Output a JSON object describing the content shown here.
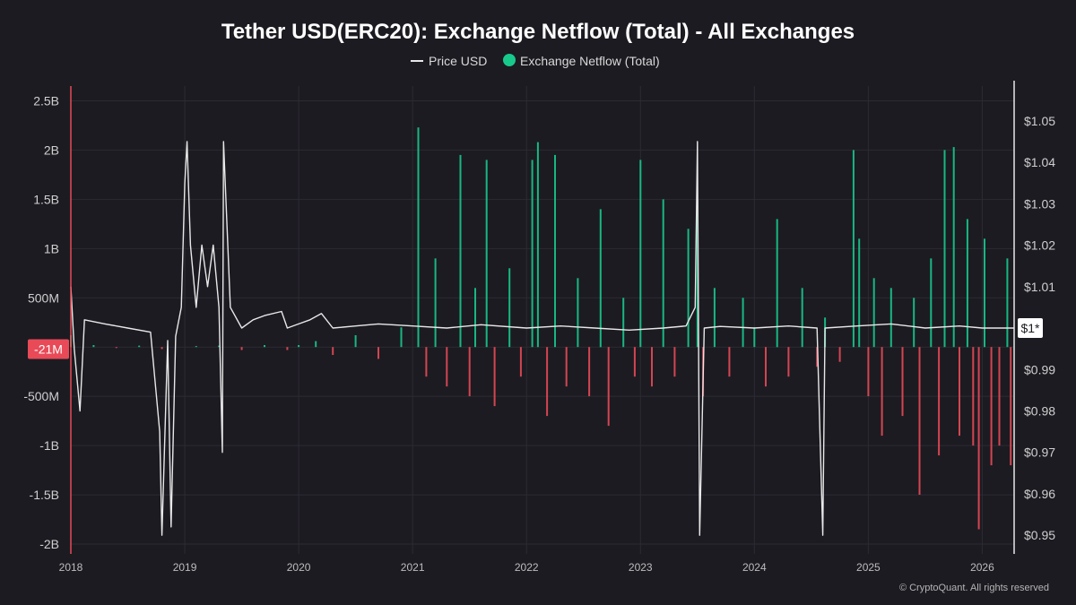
{
  "chart_data": {
    "type": "bar",
    "title": "Tether USD(ERC20): Exchange Netflow (Total) - All Exchanges",
    "legend": [
      {
        "name": "Price USD",
        "marker": "line",
        "color": "#e8e8e8"
      },
      {
        "name": "Exchange Netflow (Total)",
        "marker": "dot",
        "color": "#18c98c"
      }
    ],
    "x_range": [
      2018.0,
      2026.28
    ],
    "x_ticks": [
      {
        "value": 2018,
        "label": "2018"
      },
      {
        "value": 2019,
        "label": "2019"
      },
      {
        "value": 2020,
        "label": "2020"
      },
      {
        "value": 2021,
        "label": "2021"
      },
      {
        "value": 2022,
        "label": "2022"
      },
      {
        "value": 2023,
        "label": "2023"
      },
      {
        "value": 2024,
        "label": "2024"
      },
      {
        "value": 2025,
        "label": "2025"
      },
      {
        "value": 2026,
        "label": "2026"
      }
    ],
    "y_left": {
      "name": "Exchange Netflow",
      "range": [
        -2100000000.0,
        2650000000.0
      ],
      "ticks": [
        {
          "value": 2500000000.0,
          "label": "2.5B"
        },
        {
          "value": 2000000000.0,
          "label": "2B"
        },
        {
          "value": 1500000000.0,
          "label": "1.5B"
        },
        {
          "value": 1000000000.0,
          "label": "1B"
        },
        {
          "value": 500000000.0,
          "label": "500M"
        },
        {
          "value": -500000000.0,
          "label": "-500M"
        },
        {
          "value": -1000000000.0,
          "label": "-1B"
        },
        {
          "value": -1500000000.0,
          "label": "-1.5B"
        },
        {
          "value": -2000000000.0,
          "label": "-2B"
        }
      ]
    },
    "y_right": {
      "name": "Price USD",
      "range": [
        0.9455,
        1.0584
      ],
      "ticks": [
        {
          "value": 1.05,
          "label": "$1.05"
        },
        {
          "value": 1.04,
          "label": "$1.04"
        },
        {
          "value": 1.03,
          "label": "$1.03"
        },
        {
          "value": 1.02,
          "label": "$1.02"
        },
        {
          "value": 1.01,
          "label": "$1.01"
        },
        {
          "value": 0.99,
          "label": "$0.99"
        },
        {
          "value": 0.98,
          "label": "$0.98"
        },
        {
          "value": 0.97,
          "label": "$0.97"
        },
        {
          "value": 0.96,
          "label": "$0.96"
        },
        {
          "value": 0.95,
          "label": "$0.95"
        }
      ]
    },
    "current_netflow": {
      "value": -21000000.0,
      "label": "-21M",
      "color": "#e84a57"
    },
    "current_price": {
      "value": 1.0,
      "label": "$1*"
    },
    "positive_color": "#18c98c",
    "negative_color": "#e84a57",
    "netflow_series": {
      "name": "Exchange Netflow (Total)",
      "points": [
        [
          2018.0,
          120000000.0
        ],
        [
          2018.2,
          20000000.0
        ],
        [
          2018.4,
          -10000000.0
        ],
        [
          2018.6,
          15000000.0
        ],
        [
          2018.8,
          -20000000.0
        ],
        [
          2019.1,
          10000000.0
        ],
        [
          2019.3,
          15000000.0
        ],
        [
          2019.5,
          -30000000.0
        ],
        [
          2019.7,
          20000000.0
        ],
        [
          2019.9,
          -30000000.0
        ],
        [
          2020.0,
          20000000.0
        ],
        [
          2020.15,
          60000000.0
        ],
        [
          2020.3,
          -80000000.0
        ],
        [
          2020.5,
          120000000.0
        ],
        [
          2020.7,
          -120000000.0
        ],
        [
          2020.9,
          200000000.0
        ],
        [
          2021.05,
          2230000000.0
        ],
        [
          2021.12,
          -300000000.0
        ],
        [
          2021.2,
          900000000.0
        ],
        [
          2021.3,
          -400000000.0
        ],
        [
          2021.42,
          1950000000.0
        ],
        [
          2021.5,
          -500000000.0
        ],
        [
          2021.55,
          600000000.0
        ],
        [
          2021.65,
          1900000000.0
        ],
        [
          2021.72,
          -600000000.0
        ],
        [
          2021.85,
          800000000.0
        ],
        [
          2021.95,
          -300000000.0
        ],
        [
          2022.05,
          1900000000.0
        ],
        [
          2022.1,
          2080000000.0
        ],
        [
          2022.18,
          -700000000.0
        ],
        [
          2022.25,
          1950000000.0
        ],
        [
          2022.35,
          -400000000.0
        ],
        [
          2022.45,
          700000000.0
        ],
        [
          2022.55,
          -500000000.0
        ],
        [
          2022.65,
          1400000000.0
        ],
        [
          2022.72,
          -800000000.0
        ],
        [
          2022.85,
          500000000.0
        ],
        [
          2022.95,
          -300000000.0
        ],
        [
          2023.0,
          1900000000.0
        ],
        [
          2023.1,
          -400000000.0
        ],
        [
          2023.2,
          1500000000.0
        ],
        [
          2023.3,
          -300000000.0
        ],
        [
          2023.42,
          1200000000.0
        ],
        [
          2023.5,
          1500000000.0
        ],
        [
          2023.55,
          -500000000.0
        ],
        [
          2023.65,
          600000000.0
        ],
        [
          2023.78,
          -300000000.0
        ],
        [
          2023.9,
          500000000.0
        ],
        [
          2024.0,
          200000000.0
        ],
        [
          2024.1,
          -400000000.0
        ],
        [
          2024.2,
          1300000000.0
        ],
        [
          2024.3,
          -300000000.0
        ],
        [
          2024.42,
          600000000.0
        ],
        [
          2024.55,
          -200000000.0
        ],
        [
          2024.62,
          300000000.0
        ],
        [
          2024.75,
          -150000000.0
        ],
        [
          2024.87,
          2000000000.0
        ],
        [
          2024.92,
          1100000000.0
        ],
        [
          2025.0,
          -500000000.0
        ],
        [
          2025.05,
          700000000.0
        ],
        [
          2025.12,
          -900000000.0
        ],
        [
          2025.2,
          600000000.0
        ],
        [
          2025.3,
          -700000000.0
        ],
        [
          2025.4,
          500000000.0
        ],
        [
          2025.45,
          -1500000000.0
        ],
        [
          2025.55,
          900000000.0
        ],
        [
          2025.62,
          -1100000000.0
        ],
        [
          2025.67,
          2000000000.0
        ],
        [
          2025.75,
          2030000000.0
        ],
        [
          2025.8,
          -900000000.0
        ],
        [
          2025.87,
          1300000000.0
        ],
        [
          2025.92,
          -1000000000.0
        ],
        [
          2025.97,
          -1850000000.0
        ],
        [
          2026.02,
          1100000000.0
        ],
        [
          2026.08,
          -1200000000.0
        ],
        [
          2026.15,
          -1000000000.0
        ],
        [
          2026.22,
          900000000.0
        ],
        [
          2026.25,
          -1200000000.0
        ]
      ]
    },
    "price_series": {
      "name": "Price USD",
      "points": [
        [
          2018.0,
          1.01
        ],
        [
          2018.03,
          0.995
        ],
        [
          2018.08,
          0.98
        ],
        [
          2018.12,
          1.002
        ],
        [
          2018.3,
          1.001
        ],
        [
          2018.5,
          1.0
        ],
        [
          2018.7,
          0.999
        ],
        [
          2018.78,
          0.975
        ],
        [
          2018.8,
          0.95
        ],
        [
          2018.85,
          0.997
        ],
        [
          2018.88,
          0.952
        ],
        [
          2018.92,
          0.998
        ],
        [
          2018.97,
          1.005
        ],
        [
          2019.0,
          1.035
        ],
        [
          2019.02,
          1.045
        ],
        [
          2019.05,
          1.02
        ],
        [
          2019.1,
          1.005
        ],
        [
          2019.15,
          1.02
        ],
        [
          2019.2,
          1.01
        ],
        [
          2019.25,
          1.02
        ],
        [
          2019.3,
          1.005
        ],
        [
          2019.33,
          0.97
        ],
        [
          2019.34,
          1.045
        ],
        [
          2019.4,
          1.005
        ],
        [
          2019.5,
          1.0
        ],
        [
          2019.6,
          1.002
        ],
        [
          2019.7,
          1.003
        ],
        [
          2019.85,
          1.004
        ],
        [
          2019.9,
          1.0
        ],
        [
          2020.0,
          1.001
        ],
        [
          2020.1,
          1.002
        ],
        [
          2020.2,
          1.0035
        ],
        [
          2020.3,
          1.0
        ],
        [
          2020.5,
          1.0005
        ],
        [
          2020.7,
          1.001
        ],
        [
          2021.0,
          1.0005
        ],
        [
          2021.3,
          1.0
        ],
        [
          2021.6,
          1.0008
        ],
        [
          2022.0,
          1.0
        ],
        [
          2022.3,
          1.0005
        ],
        [
          2022.6,
          1.0
        ],
        [
          2022.9,
          0.9995
        ],
        [
          2023.2,
          1.0
        ],
        [
          2023.4,
          1.0005
        ],
        [
          2023.48,
          1.005
        ],
        [
          2023.5,
          1.045
        ],
        [
          2023.52,
          0.95
        ],
        [
          2023.56,
          1.0
        ],
        [
          2023.7,
          1.0004
        ],
        [
          2024.0,
          1.0
        ],
        [
          2024.3,
          1.0005
        ],
        [
          2024.55,
          1.0
        ],
        [
          2024.6,
          0.95
        ],
        [
          2024.62,
          1.0
        ],
        [
          2024.9,
          1.0005
        ],
        [
          2025.2,
          1.001
        ],
        [
          2025.5,
          1.0
        ],
        [
          2025.8,
          1.0005
        ],
        [
          2026.0,
          1.0
        ],
        [
          2026.28,
          1.0
        ]
      ]
    },
    "watermark": "© CryptoQuant. All rights reserved"
  }
}
